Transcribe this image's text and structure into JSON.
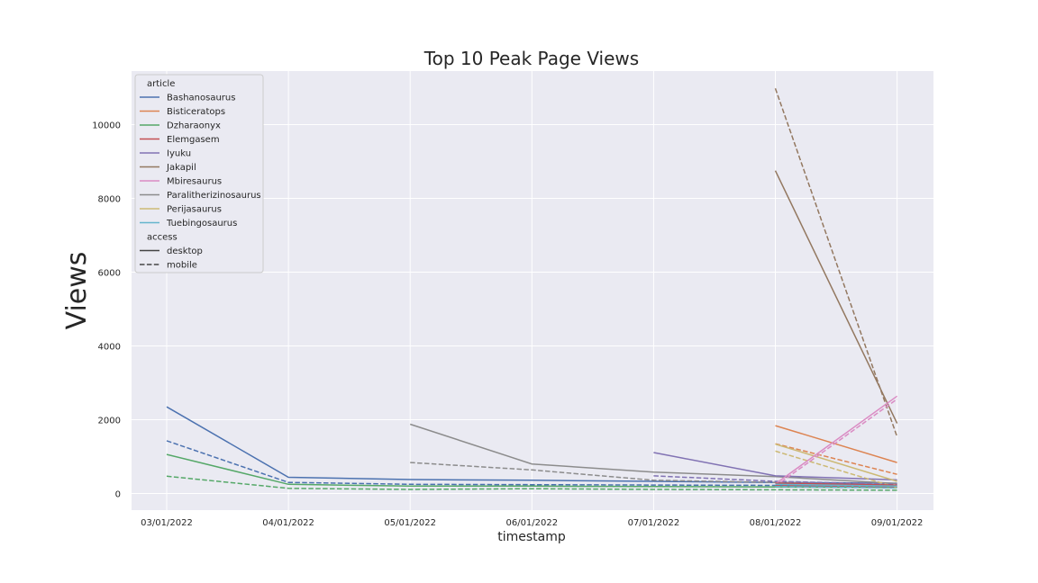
{
  "chart_data": {
    "type": "line",
    "title": "Top 10 Peak Page Views",
    "xlabel": "timestamp",
    "ylabel": "Views",
    "x": [
      "03/01/2022",
      "04/01/2022",
      "05/01/2022",
      "06/01/2022",
      "07/01/2022",
      "08/01/2022",
      "09/01/2022"
    ],
    "yticks": [
      "0",
      "2000",
      "4000",
      "6000",
      "8000",
      "10000"
    ],
    "ylim": [
      -450,
      11450
    ],
    "grid": true,
    "legend_position": "top-left",
    "legend_groups": [
      {
        "title": "article",
        "entries": [
          "Bashanosaurus",
          "Bisticeratops",
          "Dzharaonyx",
          "Elemgasem",
          "Iyuku",
          "Jakapil",
          "Mbiresaurus",
          "Paralitherizinosaurus",
          "Perijasaurus",
          "Tuebingosaurus"
        ]
      },
      {
        "title": "access",
        "entries": [
          "desktop",
          "mobile"
        ]
      }
    ],
    "colors": {
      "Bashanosaurus": "#4c72b0",
      "Bisticeratops": "#dd8452",
      "Dzharaonyx": "#55a868",
      "Elemgasem": "#c44e52",
      "Iyuku": "#8172b3",
      "Jakapil": "#937860",
      "Mbiresaurus": "#da8bc3",
      "Paralitherizinosaurus": "#8c8c8c",
      "Perijasaurus": "#ccb974",
      "Tuebingosaurus": "#64b5cd"
    },
    "series": [
      {
        "article": "Bashanosaurus",
        "access": "desktop",
        "values": [
          2350,
          440,
          380,
          360,
          330,
          300,
          280
        ]
      },
      {
        "article": "Bashanosaurus",
        "access": "mobile",
        "values": [
          1430,
          300,
          250,
          240,
          230,
          220,
          200
        ]
      },
      {
        "article": "Dzharaonyx",
        "access": "desktop",
        "values": [
          1060,
          250,
          200,
          200,
          190,
          180,
          160
        ]
      },
      {
        "article": "Dzharaonyx",
        "access": "mobile",
        "values": [
          470,
          140,
          110,
          130,
          110,
          100,
          90
        ]
      },
      {
        "article": "Paralitherizinosaurus",
        "access": "desktop",
        "values": [
          null,
          null,
          1880,
          800,
          580,
          460,
          270
        ]
      },
      {
        "article": "Paralitherizinosaurus",
        "access": "mobile",
        "values": [
          null,
          null,
          840,
          640,
          360,
          300,
          220
        ]
      },
      {
        "article": "Iyuku",
        "access": "desktop",
        "values": [
          null,
          null,
          null,
          null,
          1110,
          480,
          370
        ]
      },
      {
        "article": "Iyuku",
        "access": "mobile",
        "values": [
          null,
          null,
          null,
          null,
          480,
          330,
          250
        ]
      },
      {
        "article": "Jakapil",
        "access": "desktop",
        "values": [
          null,
          null,
          null,
          null,
          null,
          8750,
          1900
        ]
      },
      {
        "article": "Jakapil",
        "access": "mobile",
        "values": [
          null,
          null,
          null,
          null,
          null,
          10980,
          1540
        ]
      },
      {
        "article": "Bisticeratops",
        "access": "desktop",
        "values": [
          null,
          null,
          null,
          null,
          null,
          1840,
          840
        ]
      },
      {
        "article": "Bisticeratops",
        "access": "mobile",
        "values": [
          null,
          null,
          null,
          null,
          null,
          1350,
          520
        ]
      },
      {
        "article": "Perijasaurus",
        "access": "desktop",
        "values": [
          null,
          null,
          null,
          null,
          null,
          1340,
          330
        ]
      },
      {
        "article": "Perijasaurus",
        "access": "mobile",
        "values": [
          null,
          null,
          null,
          null,
          null,
          1150,
          160
        ]
      },
      {
        "article": "Mbiresaurus",
        "access": "desktop",
        "values": [
          null,
          null,
          null,
          null,
          null,
          260,
          2640
        ]
      },
      {
        "article": "Mbiresaurus",
        "access": "mobile",
        "values": [
          null,
          null,
          null,
          null,
          null,
          200,
          2560
        ]
      },
      {
        "article": "Elemgasem",
        "access": "desktop",
        "values": [
          null,
          null,
          null,
          null,
          null,
          280,
          230
        ]
      },
      {
        "article": "Elemgasem",
        "access": "mobile",
        "values": [
          null,
          null,
          null,
          null,
          null,
          220,
          180
        ]
      },
      {
        "article": "Tuebingosaurus",
        "access": "desktop",
        "values": [
          null,
          null,
          null,
          null,
          null,
          250,
          200
        ]
      },
      {
        "article": "Tuebingosaurus",
        "access": "mobile",
        "values": [
          null,
          null,
          null,
          null,
          null,
          190,
          150
        ]
      }
    ]
  }
}
